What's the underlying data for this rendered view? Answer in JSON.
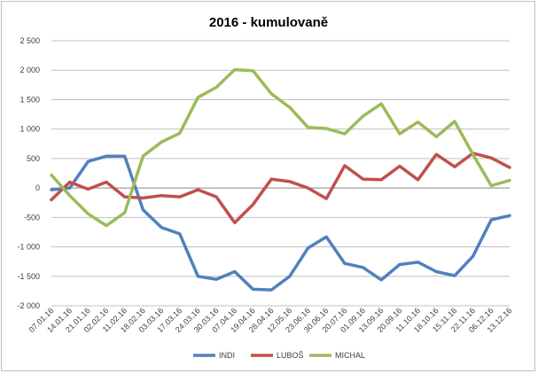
{
  "chart_data": {
    "type": "line",
    "title": "2016 - kumulovaně",
    "xlabel": "",
    "ylabel": "",
    "ylim": [
      -2000,
      2500
    ],
    "yticks": [
      -2000,
      -1500,
      -1000,
      -500,
      0,
      500,
      1000,
      1500,
      2000,
      2500
    ],
    "ytick_labels": [
      "-2 000",
      "-1 500",
      "-1 000",
      "-500",
      "0",
      "500",
      "1 000",
      "1 500",
      "2 000",
      "2 500"
    ],
    "grid": true,
    "legend_position": "bottom",
    "categories": [
      "07.01.16",
      "14.01.16",
      "21.01.16",
      "02.02.16",
      "11.02.16",
      "18.02.16",
      "03.03.16",
      "17.03.16",
      "24.03.16",
      "30.03.16",
      "07.04.16",
      "19.04.16",
      "28.04.16",
      "12.05.16",
      "23.06.16",
      "30.06.16",
      "20.07.16",
      "01.09.16",
      "13.09.16",
      "20.09.16",
      "11.10.16",
      "18.10.16",
      "15.11.16",
      "22.11.16",
      "06.12.16",
      "13.12.16"
    ],
    "series": [
      {
        "name": "INDI",
        "color": "#4f81bd",
        "values": [
          -30,
          0,
          450,
          540,
          540,
          -370,
          -670,
          -780,
          -1500,
          -1550,
          -1420,
          -1720,
          -1730,
          -1500,
          -1020,
          -830,
          -1280,
          -1350,
          -1560,
          -1300,
          -1260,
          -1420,
          -1490,
          -1160,
          -540,
          -470
        ]
      },
      {
        "name": "LUBOŠ",
        "color": "#c0504d",
        "values": [
          -200,
          100,
          -20,
          100,
          -150,
          -170,
          -130,
          -150,
          -30,
          -150,
          -590,
          -280,
          150,
          110,
          0,
          -180,
          380,
          150,
          140,
          370,
          140,
          570,
          360,
          590,
          510,
          350
        ]
      },
      {
        "name": "MICHAL",
        "color": "#9bbb59",
        "values": [
          220,
          -130,
          -440,
          -640,
          -420,
          540,
          780,
          930,
          1540,
          1710,
          2010,
          1990,
          1600,
          1370,
          1030,
          1010,
          920,
          1220,
          1430,
          920,
          1120,
          870,
          1130,
          570,
          40,
          130
        ]
      }
    ]
  }
}
